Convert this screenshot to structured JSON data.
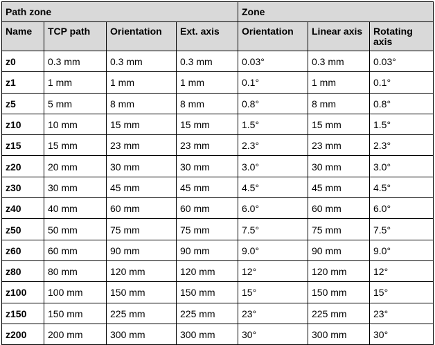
{
  "table": {
    "group_headers": [
      {
        "label": "Path zone",
        "colspan": 4
      },
      {
        "label": "Zone",
        "colspan": 3
      }
    ],
    "column_headers": [
      "Name",
      "TCP path",
      "Orientation",
      "Ext. axis",
      "Orientation",
      "Linear axis",
      "Rotating axis"
    ],
    "rows": [
      [
        "z0",
        "0.3 mm",
        "0.3 mm",
        "0.3 mm",
        "0.03°",
        "0.3 mm",
        "0.03°"
      ],
      [
        "z1",
        "1 mm",
        "1 mm",
        "1 mm",
        "0.1°",
        "1 mm",
        "0.1°"
      ],
      [
        "z5",
        "5 mm",
        "8 mm",
        "8 mm",
        "0.8°",
        "8 mm",
        "0.8°"
      ],
      [
        "z10",
        "10 mm",
        "15 mm",
        "15 mm",
        "1.5°",
        "15 mm",
        "1.5°"
      ],
      [
        "z15",
        "15 mm",
        "23 mm",
        "23 mm",
        "2.3°",
        "23 mm",
        "2.3°"
      ],
      [
        "z20",
        "20 mm",
        "30 mm",
        "30 mm",
        "3.0°",
        "30 mm",
        "3.0°"
      ],
      [
        "z30",
        "30 mm",
        "45 mm",
        "45 mm",
        "4.5°",
        "45 mm",
        "4.5°"
      ],
      [
        "z40",
        "40 mm",
        "60 mm",
        "60 mm",
        "6.0°",
        "60 mm",
        "6.0°"
      ],
      [
        "z50",
        "50 mm",
        "75 mm",
        "75 mm",
        "7.5°",
        "75 mm",
        "7.5°"
      ],
      [
        "z60",
        "60 mm",
        "90 mm",
        "90 mm",
        "9.0°",
        "90 mm",
        "9.0°"
      ],
      [
        "z80",
        "80 mm",
        "120 mm",
        "120 mm",
        "12°",
        "120 mm",
        "12°"
      ],
      [
        "z100",
        "100 mm",
        "150 mm",
        "150 mm",
        "15°",
        "150 mm",
        "15°"
      ],
      [
        "z150",
        "150 mm",
        "225 mm",
        "225 mm",
        "23°",
        "225 mm",
        "23°"
      ],
      [
        "z200",
        "200 mm",
        "300 mm",
        "300 mm",
        "30°",
        "300 mm",
        "30°"
      ]
    ],
    "header_fill": "#d9d9d9"
  }
}
